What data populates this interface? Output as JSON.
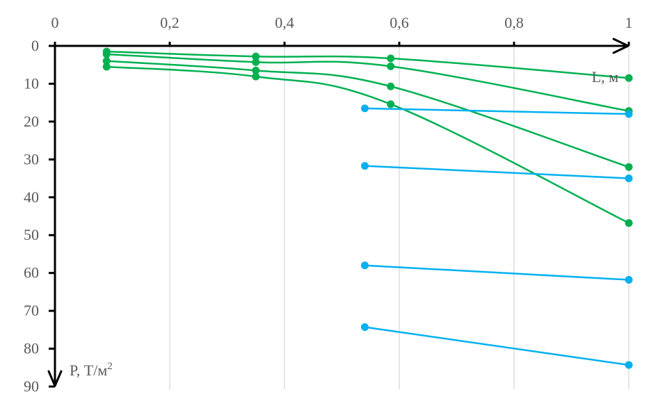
{
  "chart_data": {
    "type": "line",
    "x_axis": {
      "label": "L, м",
      "range": [
        0,
        1
      ],
      "ticks": [
        0,
        0.2,
        0.4,
        0.6,
        0.8,
        1
      ],
      "tick_labels": [
        "0",
        "0,2",
        "0,4",
        "0,6",
        "0,8",
        "1"
      ],
      "position": "top"
    },
    "y_axis": {
      "label_main": "P, Т/м",
      "label_superscript": "2",
      "range": [
        0,
        90
      ],
      "reversed": true,
      "ticks": [
        0,
        10,
        20,
        30,
        40,
        50,
        60,
        70,
        80,
        90
      ],
      "tick_labels": [
        "0",
        "10",
        "20",
        "30",
        "40",
        "50",
        "60",
        "70",
        "80",
        "90"
      ]
    },
    "grid": "vertical",
    "series": [
      {
        "color": "#00b050",
        "smooth": true,
        "points": [
          [
            0.09,
            1.5
          ],
          [
            0.35,
            2.8
          ],
          [
            0.585,
            3.3
          ],
          [
            1.0,
            8.5
          ]
        ]
      },
      {
        "color": "#00b050",
        "smooth": true,
        "points": [
          [
            0.09,
            2.2
          ],
          [
            0.35,
            4.3
          ],
          [
            0.585,
            5.4
          ],
          [
            1.0,
            17.2
          ]
        ]
      },
      {
        "color": "#00b050",
        "smooth": true,
        "points": [
          [
            0.09,
            4.0
          ],
          [
            0.35,
            6.5
          ],
          [
            0.585,
            10.7
          ],
          [
            1.0,
            32.0
          ]
        ]
      },
      {
        "color": "#00b050",
        "smooth": true,
        "points": [
          [
            0.09,
            5.5
          ],
          [
            0.35,
            8.1
          ],
          [
            0.585,
            15.4
          ],
          [
            1.0,
            46.8
          ]
        ]
      },
      {
        "color": "#00b0f0",
        "smooth": false,
        "points": [
          [
            0.54,
            16.5
          ],
          [
            1.0,
            18.0
          ]
        ]
      },
      {
        "color": "#00b0f0",
        "smooth": false,
        "points": [
          [
            0.54,
            31.7
          ],
          [
            1.0,
            35.0
          ]
        ]
      },
      {
        "color": "#00b0f0",
        "smooth": false,
        "points": [
          [
            0.54,
            58.0
          ],
          [
            1.0,
            61.8
          ]
        ]
      },
      {
        "color": "#00b0f0",
        "smooth": false,
        "points": [
          [
            0.54,
            74.3
          ],
          [
            1.0,
            84.3
          ]
        ]
      }
    ]
  }
}
